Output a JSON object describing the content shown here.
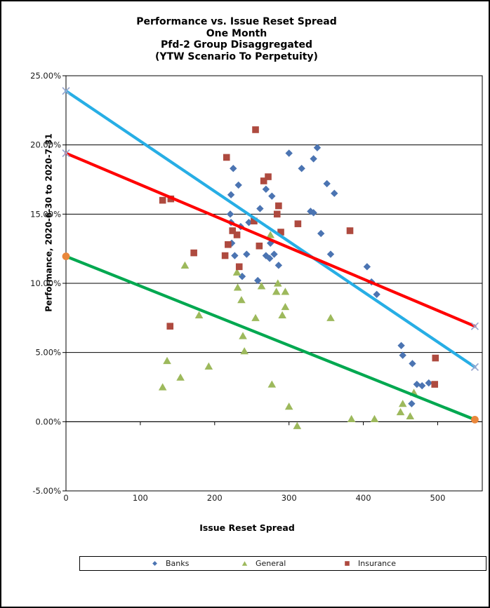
{
  "chart_data": {
    "type": "scatter",
    "title_lines": [
      "Performance vs. Issue Reset Spread",
      "One Month",
      "Pfd-2 Group Disaggregated",
      "(YTW Scenario To Perpetuity)"
    ],
    "title": "Performance vs. Issue Reset Spread One Month Pfd-2 Group Disaggregated (YTW Scenario To Perpetuity)",
    "xlabel": "Issue Reset Spread",
    "ylabel": "Performance, 2020-6-30 to 2020-7-31",
    "xlim": [
      0,
      560
    ],
    "ylim": [
      -5,
      25
    ],
    "x_tick_values": [
      0,
      100,
      200,
      300,
      400,
      500
    ],
    "x_tick_labels": [
      "0",
      "100",
      "200",
      "300",
      "400",
      "500"
    ],
    "y_tick_values": [
      25,
      20,
      15,
      10,
      5,
      0,
      -5
    ],
    "y_tick_labels": [
      "25.00%",
      "20.00%",
      "15.00%",
      "10.00%",
      "5.00%",
      "0.00%",
      "-5.00%"
    ],
    "grid": "horizontal-major",
    "axis_color": "#000000",
    "tick_label_color": "#1a1a1a",
    "legend_position": "bottom",
    "series": [
      {
        "name": "Banks",
        "marker": "diamond",
        "color": "#4B74B2",
        "points": [
          [
            225,
            18.3
          ],
          [
            232,
            17.1
          ],
          [
            269,
            16.8
          ],
          [
            222,
            16.4
          ],
          [
            277,
            16.3
          ],
          [
            261,
            15.4
          ],
          [
            221,
            15.0
          ],
          [
            222,
            14.4
          ],
          [
            235,
            14.1
          ],
          [
            246,
            14.4
          ],
          [
            223,
            12.9
          ],
          [
            227,
            12.0
          ],
          [
            243,
            12.1
          ],
          [
            269,
            12.0
          ],
          [
            274,
            11.8
          ],
          [
            280,
            12.1
          ],
          [
            275,
            12.9
          ],
          [
            237,
            10.5
          ],
          [
            258,
            10.2
          ],
          [
            286,
            11.3
          ],
          [
            300,
            19.4
          ],
          [
            333,
            19.0
          ],
          [
            338,
            19.8
          ],
          [
            317,
            18.3
          ],
          [
            351,
            17.2
          ],
          [
            361,
            16.5
          ],
          [
            329,
            15.2
          ],
          [
            333,
            15.1
          ],
          [
            343,
            13.6
          ],
          [
            356,
            12.1
          ],
          [
            405,
            11.2
          ],
          [
            411,
            10.1
          ],
          [
            418,
            9.2
          ],
          [
            451,
            5.5
          ],
          [
            453,
            4.8
          ],
          [
            466,
            4.2
          ],
          [
            472,
            2.7
          ],
          [
            479,
            2.6
          ],
          [
            488,
            2.8
          ],
          [
            465,
            1.3
          ]
        ]
      },
      {
        "name": "General",
        "marker": "triangle",
        "color": "#9DB95C",
        "points": [
          [
            160,
            11.3
          ],
          [
            275,
            13.5
          ],
          [
            230,
            10.8
          ],
          [
            231,
            9.7
          ],
          [
            263,
            9.8
          ],
          [
            285,
            10.0
          ],
          [
            283,
            9.4
          ],
          [
            295,
            9.4
          ],
          [
            236,
            8.8
          ],
          [
            295,
            8.3
          ],
          [
            291,
            7.7
          ],
          [
            179,
            7.7
          ],
          [
            255,
            7.5
          ],
          [
            356,
            7.5
          ],
          [
            238,
            6.2
          ],
          [
            240,
            5.1
          ],
          [
            136,
            4.4
          ],
          [
            192,
            4.0
          ],
          [
            154,
            3.2
          ],
          [
            130,
            2.5
          ],
          [
            277,
            2.7
          ],
          [
            468,
            2.1
          ],
          [
            453,
            1.3
          ],
          [
            450,
            0.7
          ],
          [
            300,
            1.1
          ],
          [
            463,
            0.4
          ],
          [
            384,
            0.2
          ],
          [
            415,
            0.2
          ],
          [
            311,
            -0.3
          ]
        ]
      },
      {
        "name": "Insurance",
        "marker": "square",
        "color": "#AE4A3F",
        "points": [
          [
            255,
            21.1
          ],
          [
            216,
            19.1
          ],
          [
            272,
            17.7
          ],
          [
            266,
            17.4
          ],
          [
            130,
            16.0
          ],
          [
            141,
            16.1
          ],
          [
            286,
            15.6
          ],
          [
            284,
            15.0
          ],
          [
            253,
            14.5
          ],
          [
            312,
            14.3
          ],
          [
            382,
            13.8
          ],
          [
            224,
            13.8
          ],
          [
            289,
            13.7
          ],
          [
            230,
            13.5
          ],
          [
            218,
            12.8
          ],
          [
            260,
            12.7
          ],
          [
            172,
            12.2
          ],
          [
            214,
            12.0
          ],
          [
            233,
            11.2
          ],
          [
            140,
            6.9
          ],
          [
            497,
            4.6
          ],
          [
            496,
            2.7
          ]
        ]
      }
    ],
    "trend_lines": [
      {
        "series": "Banks",
        "color": "#27AEE5",
        "endpoint_marker": "x",
        "endpoint_color": "#97A6CE",
        "from": [
          0,
          23.9
        ],
        "to": [
          550,
          3.95
        ]
      },
      {
        "series": "Insurance",
        "color": "#FF0000",
        "endpoint_marker": "x",
        "endpoint_color": "#97A6CE",
        "from": [
          0,
          19.4
        ],
        "to": [
          550,
          6.9
        ]
      },
      {
        "series": "General",
        "color": "#00A850",
        "endpoint_marker": "circle",
        "endpoint_color": "#E9873B",
        "from": [
          0,
          11.95
        ],
        "to": [
          550,
          0.15
        ]
      }
    ]
  }
}
